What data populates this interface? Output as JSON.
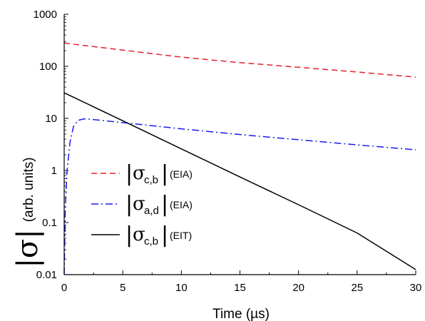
{
  "chart_data": {
    "type": "line",
    "title": "",
    "xlabel": "Time (µs)",
    "ylabel": {
      "symbol": "σ",
      "units": "(arb. units)"
    },
    "xlim": [
      0,
      30
    ],
    "ylim": [
      0.01,
      1000
    ],
    "yscale": "log",
    "grid": false,
    "legend_position": "center-left",
    "x_ticks": [
      0,
      5,
      10,
      15,
      20,
      25,
      30
    ],
    "x_tick_labels": [
      "0",
      "5",
      "10",
      "15",
      "20",
      "25",
      "30"
    ],
    "y_ticks": [
      0.01,
      0.1,
      1,
      10,
      100,
      1000
    ],
    "y_tick_labels": [
      "0.01",
      "0.1",
      "1",
      "10",
      "100",
      "1000"
    ],
    "series": [
      {
        "name": "|σc,b| (EIA)",
        "symbol": "σ",
        "subscript": "c,b",
        "tag": "(EIA)",
        "color": "#e8202a",
        "dash": "8,5",
        "x": [
          0,
          5,
          10,
          15,
          20,
          25,
          30
        ],
        "values": [
          280,
          205,
          150,
          118,
          96,
          78,
          62
        ]
      },
      {
        "name": "|σa,d| (EIA)",
        "symbol": "σ",
        "subscript": "a,d",
        "tag": "(EIA)",
        "color": "#1a1aee",
        "dash": "10,4,2,4",
        "x": [
          0,
          0.1,
          0.25,
          0.5,
          0.8,
          1.2,
          1.7,
          2.5,
          5,
          10,
          15,
          20,
          25,
          30
        ],
        "values": [
          0.01,
          0.2,
          1.0,
          3.5,
          7.0,
          9.2,
          9.8,
          9.5,
          8.3,
          6.3,
          4.9,
          3.9,
          3.1,
          2.5
        ]
      },
      {
        "name": "|σc,b| (EIT)",
        "symbol": "σ",
        "subscript": "c,b",
        "tag": "(EIT)",
        "color": "#000000",
        "dash": "",
        "x": [
          0,
          5,
          10,
          15,
          20,
          25,
          30
        ],
        "values": [
          31,
          9.0,
          2.6,
          0.75,
          0.22,
          0.063,
          0.0125
        ]
      }
    ]
  }
}
